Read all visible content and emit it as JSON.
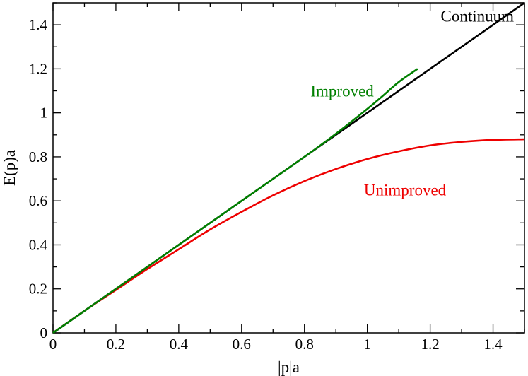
{
  "chart_data": {
    "type": "line",
    "title": "",
    "xlabel": "|p|a",
    "ylabel": "E(p)a",
    "xlim": [
      0,
      1.5
    ],
    "ylim": [
      0,
      1.5
    ],
    "grid": false,
    "legend": "none",
    "x_ticks": [
      0,
      0.2,
      0.4,
      0.6,
      0.8,
      1,
      1.2,
      1.4
    ],
    "x_tick_labels": [
      "0",
      "0.2",
      "0.4",
      "0.6",
      "0.8",
      "1",
      "1.2",
      "1.4"
    ],
    "y_ticks": [
      0,
      0.2,
      0.4,
      0.6,
      0.8,
      1,
      1.2,
      1.4
    ],
    "y_tick_labels": [
      "0",
      "0.2",
      "0.4",
      "0.6",
      "0.8",
      "1",
      "1.2",
      "1.4"
    ],
    "series": [
      {
        "name": "Continuum",
        "color": "#000000",
        "x": [
          0,
          1.5
        ],
        "y": [
          0,
          1.5
        ],
        "label_at": [
          1.35,
          1.44
        ]
      },
      {
        "name": "Improved",
        "color": "#008000",
        "x": [
          0,
          0.2,
          0.4,
          0.6,
          0.8,
          0.9,
          1.0,
          1.05,
          1.1,
          1.16
        ],
        "y": [
          0,
          0.2,
          0.4,
          0.6,
          0.8,
          0.905,
          1.018,
          1.078,
          1.14,
          1.2
        ],
        "label_at": [
          0.92,
          1.1
        ]
      },
      {
        "name": "Unimproved",
        "color": "#ee0000",
        "x": [
          0,
          0.1,
          0.2,
          0.3,
          0.4,
          0.5,
          0.6,
          0.7,
          0.8,
          0.9,
          1.0,
          1.1,
          1.2,
          1.3,
          1.4,
          1.5
        ],
        "y": [
          0,
          0.1,
          0.195,
          0.29,
          0.38,
          0.47,
          0.55,
          0.625,
          0.69,
          0.745,
          0.79,
          0.825,
          0.852,
          0.868,
          0.877,
          0.88
        ],
        "label_at": [
          1.12,
          0.65
        ]
      }
    ]
  }
}
